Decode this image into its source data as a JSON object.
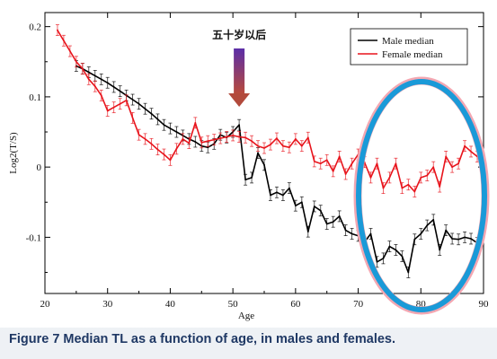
{
  "chart_data": {
    "type": "line",
    "title": "",
    "xlabel": "Age",
    "ylabel": "Log2(T/S)",
    "xlim": [
      20,
      90
    ],
    "ylim": [
      -0.18,
      0.22
    ],
    "x_ticks": [
      20,
      30,
      40,
      50,
      60,
      70,
      80,
      90
    ],
    "y_ticks": [
      0.2,
      0.1,
      0,
      -0.1
    ],
    "x_tick_labels": [
      "20",
      "30",
      "40",
      "50",
      "60",
      "70",
      "80",
      "90"
    ],
    "y_tick_labels": [
      "0.2",
      "0.1",
      "0",
      "-0.1"
    ],
    "legend_position": "top-right",
    "grid": false,
    "series": [
      {
        "name": "Male median",
        "color": "#000000",
        "points": [
          [
            25,
            0.144
          ],
          [
            26,
            0.14
          ],
          [
            27,
            0.135
          ],
          [
            28,
            0.13
          ],
          [
            29,
            0.125
          ],
          [
            30,
            0.12
          ],
          [
            31,
            0.114
          ],
          [
            32,
            0.108
          ],
          [
            33,
            0.102
          ],
          [
            34,
            0.096
          ],
          [
            35,
            0.09
          ],
          [
            36,
            0.083
          ],
          [
            37,
            0.076
          ],
          [
            38,
            0.068
          ],
          [
            39,
            0.06
          ],
          [
            40,
            0.055
          ],
          [
            41,
            0.05
          ],
          [
            42,
            0.045
          ],
          [
            43,
            0.04
          ],
          [
            44,
            0.036
          ],
          [
            45,
            0.03
          ],
          [
            46,
            0.028
          ],
          [
            47,
            0.033
          ],
          [
            48,
            0.046
          ],
          [
            49,
            0.042
          ],
          [
            50,
            0.05
          ],
          [
            51,
            0.06
          ],
          [
            52,
            -0.018
          ],
          [
            53,
            -0.015
          ],
          [
            54,
            0.02
          ],
          [
            55,
            0.003
          ],
          [
            56,
            -0.04
          ],
          [
            57,
            -0.036
          ],
          [
            58,
            -0.04
          ],
          [
            59,
            -0.03
          ],
          [
            60,
            -0.055
          ],
          [
            61,
            -0.05
          ],
          [
            62,
            -0.092
          ],
          [
            63,
            -0.056
          ],
          [
            64,
            -0.062
          ],
          [
            65,
            -0.081
          ],
          [
            66,
            -0.078
          ],
          [
            67,
            -0.07
          ],
          [
            68,
            -0.09
          ],
          [
            69,
            -0.095
          ],
          [
            70,
            -0.098
          ],
          [
            71,
            -0.107
          ],
          [
            72,
            -0.095
          ],
          [
            73,
            -0.135
          ],
          [
            74,
            -0.13
          ],
          [
            75,
            -0.113
          ],
          [
            76,
            -0.118
          ],
          [
            77,
            -0.127
          ],
          [
            78,
            -0.15
          ],
          [
            79,
            -0.103
          ],
          [
            80,
            -0.095
          ],
          [
            81,
            -0.083
          ],
          [
            82,
            -0.075
          ],
          [
            83,
            -0.118
          ],
          [
            84,
            -0.09
          ],
          [
            85,
            -0.102
          ],
          [
            86,
            -0.103
          ],
          [
            87,
            -0.1
          ],
          [
            88,
            -0.102
          ],
          [
            89,
            -0.108
          ]
        ]
      },
      {
        "name": "Female median",
        "color": "#e8141c",
        "points": [
          [
            22,
            0.195
          ],
          [
            23,
            0.18
          ],
          [
            24,
            0.165
          ],
          [
            25,
            0.15
          ],
          [
            26,
            0.14
          ],
          [
            27,
            0.125
          ],
          [
            28,
            0.115
          ],
          [
            29,
            0.102
          ],
          [
            30,
            0.08
          ],
          [
            31,
            0.085
          ],
          [
            32,
            0.09
          ],
          [
            33,
            0.095
          ],
          [
            34,
            0.07
          ],
          [
            35,
            0.046
          ],
          [
            36,
            0.04
          ],
          [
            37,
            0.033
          ],
          [
            38,
            0.025
          ],
          [
            39,
            0.018
          ],
          [
            40,
            0.01
          ],
          [
            41,
            0.026
          ],
          [
            42,
            0.04
          ],
          [
            43,
            0.034
          ],
          [
            44,
            0.063
          ],
          [
            45,
            0.035
          ],
          [
            46,
            0.037
          ],
          [
            47,
            0.039
          ],
          [
            48,
            0.041
          ],
          [
            49,
            0.043
          ],
          [
            50,
            0.045
          ],
          [
            51,
            0.043
          ],
          [
            52,
            0.042
          ],
          [
            53,
            0.037
          ],
          [
            54,
            0.03
          ],
          [
            55,
            0.027
          ],
          [
            56,
            0.032
          ],
          [
            57,
            0.041
          ],
          [
            58,
            0.03
          ],
          [
            59,
            0.028
          ],
          [
            60,
            0.04
          ],
          [
            61,
            0.03
          ],
          [
            62,
            0.042
          ],
          [
            63,
            0.008
          ],
          [
            64,
            0.005
          ],
          [
            65,
            0.01
          ],
          [
            66,
            -0.006
          ],
          [
            67,
            0.015
          ],
          [
            68,
            -0.01
          ],
          [
            69,
            0.005
          ],
          [
            70,
            0.018
          ],
          [
            71,
            0.007
          ],
          [
            72,
            -0.015
          ],
          [
            73,
            0.005
          ],
          [
            74,
            -0.03
          ],
          [
            75,
            -0.015
          ],
          [
            76,
            0.005
          ],
          [
            77,
            -0.03
          ],
          [
            78,
            -0.025
          ],
          [
            79,
            -0.035
          ],
          [
            80,
            -0.015
          ],
          [
            81,
            -0.012
          ],
          [
            82,
            0.0
          ],
          [
            83,
            -0.028
          ],
          [
            84,
            0.015
          ],
          [
            85,
            0.0
          ],
          [
            86,
            0.005
          ],
          [
            87,
            0.03
          ],
          [
            88,
            0.022
          ],
          [
            89,
            0.015
          ]
        ]
      }
    ]
  },
  "annotation": {
    "text": "五十岁以后"
  },
  "caption": "Figure 7  Median TL as a function of age, in males and females."
}
